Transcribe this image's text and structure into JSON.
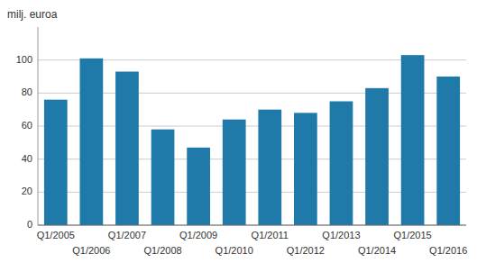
{
  "chart_data": {
    "type": "bar",
    "ylabel": "milj. euroa",
    "categories": [
      "Q1/2005",
      "Q1/2006",
      "Q1/2007",
      "Q1/2008",
      "Q1/2009",
      "Q1/2010",
      "Q1/2011",
      "Q1/2012",
      "Q1/2013",
      "Q1/2014",
      "Q1/2015",
      "Q1/2016"
    ],
    "values": [
      76,
      101,
      93,
      58,
      47,
      64,
      70,
      68,
      75,
      83,
      103,
      90
    ],
    "color": "#1f7aaa",
    "ylim": [
      0,
      120
    ],
    "yticks": [
      0,
      20,
      40,
      60,
      80,
      100
    ],
    "grid": true
  }
}
